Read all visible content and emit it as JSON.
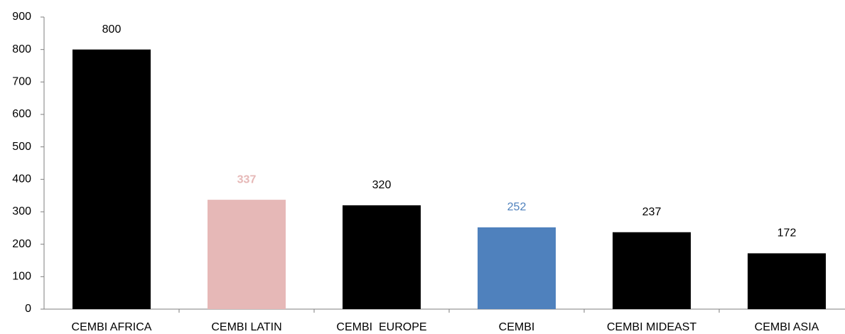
{
  "chart_data": {
    "type": "bar",
    "categories": [
      "CEMBI AFRICA",
      "CEMBI LATIN",
      "CEMBI  EUROPE",
      "CEMBI",
      "CEMBI MIDEAST",
      "CEMBI ASIA"
    ],
    "values": [
      800,
      337,
      320,
      252,
      237,
      172
    ],
    "colors": [
      "#000000",
      "#e6b8b7",
      "#000000",
      "#4f81bd",
      "#000000",
      "#000000"
    ],
    "ylim": [
      0,
      900
    ],
    "yticks": [
      0,
      100,
      200,
      300,
      400,
      500,
      600,
      700,
      800,
      900
    ],
    "grid": false
  }
}
